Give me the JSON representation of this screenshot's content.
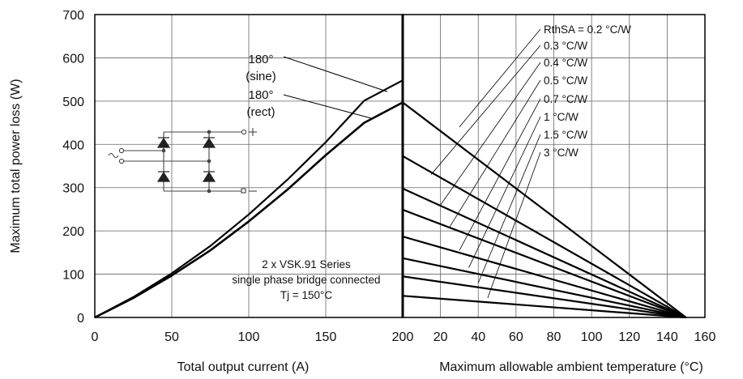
{
  "chart_data": [
    {
      "type": "line",
      "ylabel": "Maximum total power loss (W)",
      "xlabel": "Total output current (A)",
      "xlim": [
        0,
        200
      ],
      "ylim": [
        0,
        700
      ],
      "xticks": [
        "0",
        "50",
        "100",
        "150",
        "200"
      ],
      "yticks": [
        "0",
        "100",
        "200",
        "300",
        "400",
        "500",
        "600",
        "700"
      ],
      "grid": true,
      "series": [
        {
          "name": "180° (sine)",
          "x": [
            0,
            25,
            50,
            75,
            100,
            125,
            150,
            175,
            200
          ],
          "y": [
            0,
            47,
            102,
            165,
            238,
            318,
            405,
            501,
            548
          ]
        },
        {
          "name": "180° (rect)",
          "x": [
            0,
            25,
            50,
            75,
            100,
            125,
            150,
            175,
            200
          ],
          "y": [
            0,
            45,
            97,
            155,
            222,
            295,
            375,
            450,
            497
          ]
        }
      ],
      "annotations": {
        "sine_line1": "180°",
        "sine_line2": "(sine)",
        "rect_line1": "180°",
        "rect_line2": "(rect)",
        "note_line1": "2 x VSK.91 Series",
        "note_line2": "single phase bridge connected",
        "note_line3": "Tj = 150°C"
      },
      "inset": "single-phase-bridge-circuit"
    },
    {
      "type": "line",
      "xlabel": "Maximum allowable ambient temperature (°C)",
      "xlim": [
        0,
        160
      ],
      "ylim": [
        0,
        700
      ],
      "xticks": [
        "20",
        "40",
        "60",
        "80",
        "100",
        "120",
        "140",
        "160"
      ],
      "grid": true,
      "series": [
        {
          "name": "RthSA = 0.2 °C/W",
          "x": [
            0,
            150
          ],
          "y": [
            497,
            0
          ]
        },
        {
          "name": "0.3 °C/W",
          "x": [
            0,
            150
          ],
          "y": [
            373,
            0
          ]
        },
        {
          "name": "0.4 °C/W",
          "x": [
            0,
            150
          ],
          "y": [
            298,
            0
          ]
        },
        {
          "name": "0.5 °C/W",
          "x": [
            0,
            150
          ],
          "y": [
            249,
            0
          ]
        },
        {
          "name": "0.7 °C/W",
          "x": [
            0,
            150
          ],
          "y": [
            187,
            0
          ]
        },
        {
          "name": "1 °C/W",
          "x": [
            0,
            150
          ],
          "y": [
            137,
            0
          ]
        },
        {
          "name": "1.5 °C/W",
          "x": [
            0,
            150
          ],
          "y": [
            95,
            0
          ]
        },
        {
          "name": "3 °C/W",
          "x": [
            0,
            150
          ],
          "y": [
            50,
            0
          ]
        }
      ]
    }
  ]
}
